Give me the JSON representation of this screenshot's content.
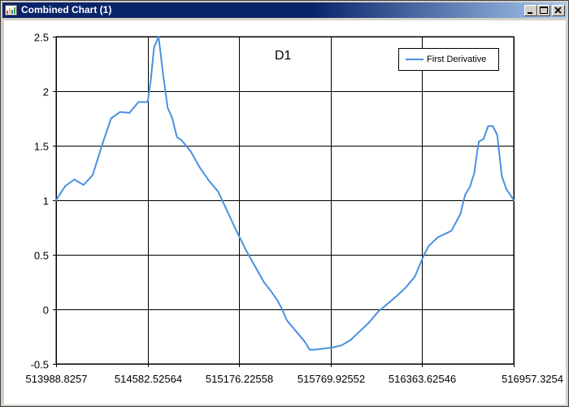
{
  "window": {
    "title": "Combined Chart (1)",
    "icons": [
      "app-chart-icon",
      "minimize-icon",
      "maximize-icon",
      "close-icon"
    ]
  },
  "chart_data": {
    "type": "line",
    "title": "D1",
    "xlabel": "",
    "ylabel": "",
    "xlim": [
      513988.8257,
      516957.3254
    ],
    "ylim": [
      -0.5,
      2.5
    ],
    "x_ticks": [
      "513988.8257",
      "514582.52564",
      "515176.22558",
      "515769.92552",
      "516363.62546",
      "516957.3254"
    ],
    "y_ticks": [
      "2.5",
      "2",
      "1.5",
      "1",
      "0.5",
      "0",
      "-0.5"
    ],
    "grid": true,
    "legend_position": "top-right",
    "series": [
      {
        "name": "First Derivative",
        "color": "#4a90e2",
        "x": [
          513988.8257,
          514048.1957,
          514107.5657,
          514166.9357,
          514226.3057,
          514285.6757,
          514345.0457,
          514404.4157,
          514463.7857,
          514523.1557,
          514552.8407,
          514582.5256,
          514603.3051,
          514624.0846,
          514653.7696,
          514683.4546,
          514712.0001,
          514742.8246,
          514772.5096,
          514802.1946,
          514861.5646,
          514920.9346,
          514980.3046,
          515039.6746,
          515099.0446,
          515158.4146,
          515217.7846,
          515277.1546,
          515336.5246,
          515381.0521,
          515425.5796,
          515455.2646,
          515484.9496,
          515544.3196,
          515603.6896,
          515633.3746,
          515663.0596,
          515722.4296,
          515781.7996,
          515841.1696,
          515900.5396,
          515959.9096,
          516019.2796,
          516078.6496,
          516138.0196,
          516197.3896,
          516256.7596,
          516316.1296,
          516345.8146,
          516375.4996,
          516405.1846,
          516434.8696,
          516464.5546,
          516494.2396,
          516523.9246,
          516553.6096,
          516583.2946,
          516612.9796,
          516627.8221,
          516642.6646,
          516672.3496,
          516701.3405,
          516720.8846,
          516731.7196,
          516761.4046,
          516791.0896,
          516820.7746,
          516850.4596,
          516880.1446,
          516909.8296,
          516939.5146,
          516957.3254
        ],
        "y": [
          1.0,
          1.13,
          1.19,
          1.14,
          1.23,
          1.5,
          1.75,
          1.81,
          1.8,
          1.9,
          1.9,
          1.9,
          2.1,
          2.4,
          2.5,
          2.15,
          1.85,
          1.75,
          1.58,
          1.55,
          1.45,
          1.3,
          1.18,
          1.08,
          0.9,
          0.72,
          0.55,
          0.4,
          0.25,
          0.17,
          0.08,
          0.0,
          -0.1,
          -0.2,
          -0.3,
          -0.37,
          -0.37,
          -0.36,
          -0.35,
          -0.33,
          -0.28,
          -0.2,
          -0.12,
          -0.02,
          0.05,
          0.12,
          0.2,
          0.3,
          0.4,
          0.5,
          0.58,
          0.62,
          0.66,
          0.68,
          0.7,
          0.72,
          0.8,
          0.88,
          0.97,
          1.05,
          1.12,
          1.25,
          1.45,
          1.54,
          1.56,
          1.68,
          1.68,
          1.6,
          1.22,
          1.1,
          1.04,
          1.0
        ]
      }
    ]
  }
}
